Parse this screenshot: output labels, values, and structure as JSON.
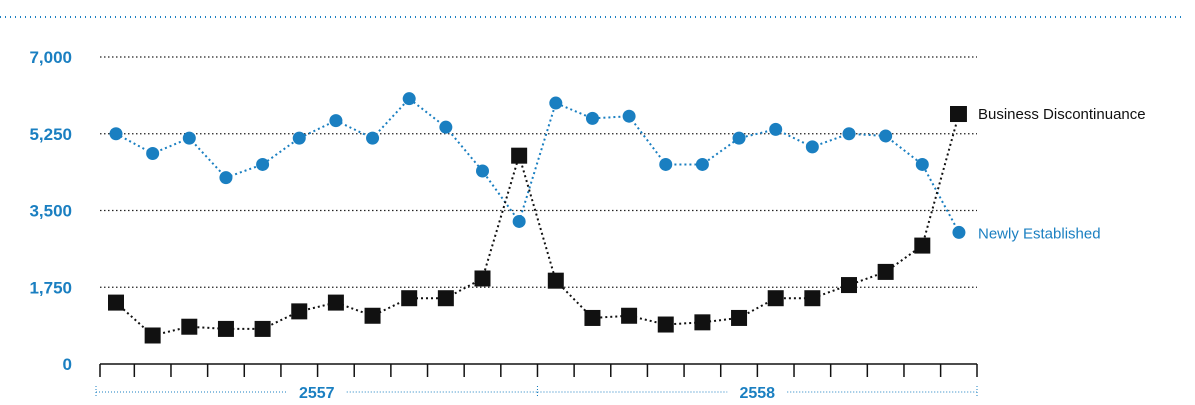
{
  "chart_data": {
    "type": "line",
    "title": "",
    "xlabel": "",
    "ylabel": "",
    "ylim": [
      0,
      7000
    ],
    "yticks": [
      0,
      1750,
      3500,
      5250,
      7000
    ],
    "ytick_labels": [
      "0",
      "1,750",
      "3,500",
      "5,250",
      "7,000"
    ],
    "x": [
      1,
      2,
      3,
      4,
      5,
      6,
      7,
      8,
      9,
      10,
      11,
      12,
      13,
      14,
      15,
      16,
      17,
      18,
      19,
      20,
      21,
      22,
      23,
      24
    ],
    "year_groups": [
      {
        "label": "2557",
        "start": 1,
        "end": 12
      },
      {
        "label": "2558",
        "start": 13,
        "end": 24
      }
    ],
    "grid": true,
    "series": [
      {
        "name": "Newly Established",
        "color": "#1a7fc1",
        "marker": "circle",
        "values": [
          5250,
          4800,
          5150,
          4250,
          4550,
          5150,
          5550,
          5150,
          6050,
          5400,
          4400,
          3250,
          5950,
          5600,
          5650,
          4550,
          4550,
          5150,
          5350,
          4950,
          5250,
          5200,
          4550,
          3000
        ]
      },
      {
        "name": "Business Discontinuance",
        "color": "#111111",
        "marker": "square",
        "values": [
          1400,
          650,
          850,
          800,
          800,
          1200,
          1400,
          1100,
          1500,
          1500,
          1950,
          4750,
          1900,
          1050,
          1100,
          900,
          950,
          1050,
          1500,
          1500,
          1800,
          2100,
          2700,
          5700
        ]
      }
    ]
  }
}
